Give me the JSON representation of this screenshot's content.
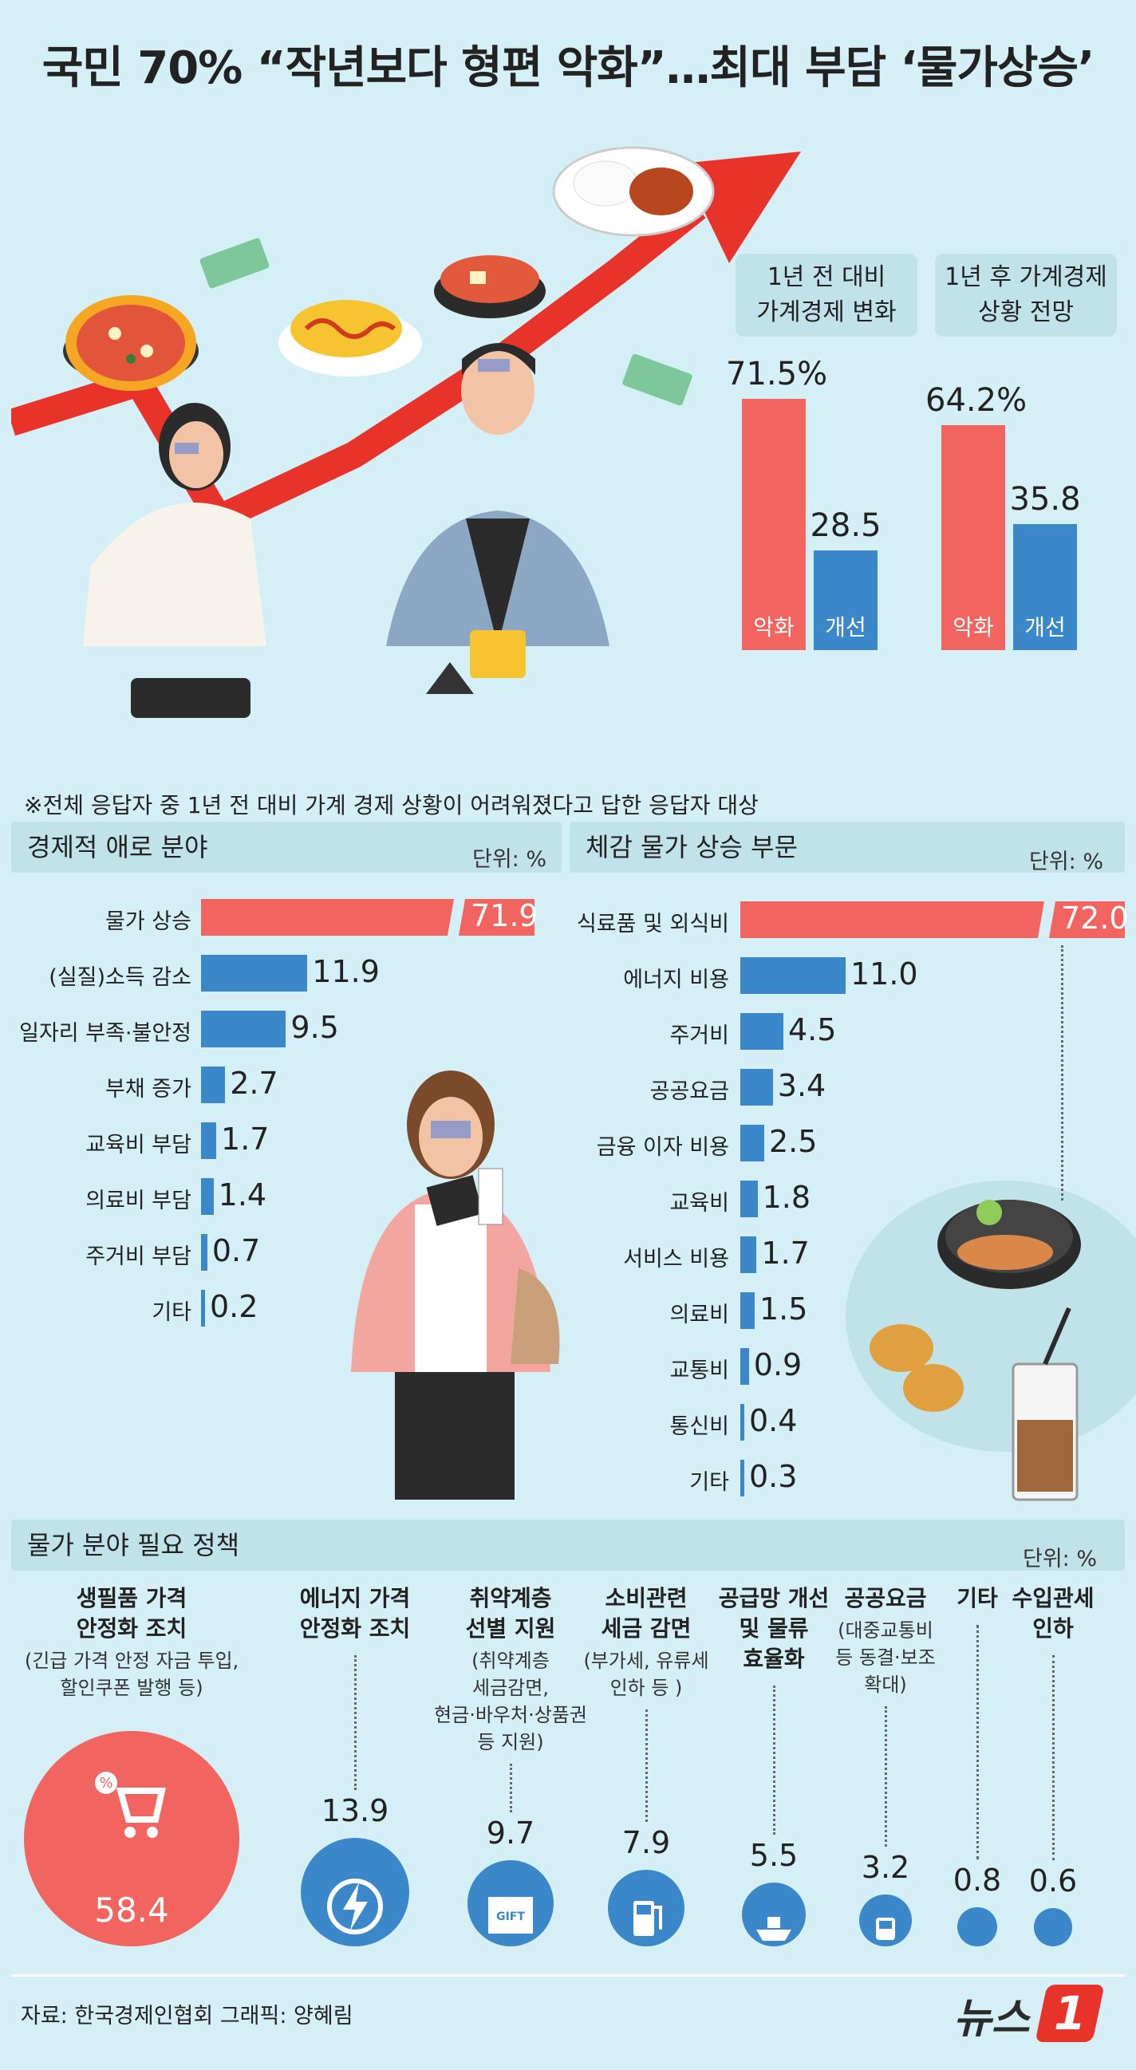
{
  "title": "국민 70% “작년보다 형편 악화”…최대 부담 ‘물가상승’",
  "colors": {
    "red": "#f2645f",
    "blue": "#3a87c9",
    "panel": "#bfe3e8",
    "bg": "#d4f0f6"
  },
  "top_charts": [
    {
      "heading": "1년 전 대비\n가계경제 변화",
      "bars": [
        {
          "label": "악화",
          "value": 71.5,
          "display": "71.5%"
        },
        {
          "label": "개선",
          "value": 28.5,
          "display": "28.5"
        }
      ]
    },
    {
      "heading": "1년 후 가계경제\n상황 전망",
      "bars": [
        {
          "label": "악화",
          "value": 64.2,
          "display": "64.2%"
        },
        {
          "label": "개선",
          "value": 35.8,
          "display": "35.8"
        }
      ]
    }
  ],
  "note": "※전체 응답자 중 1년 전 대비 가계 경제 상황이 어려워졌다고 답한 응답자 대상",
  "chart_data": [
    {
      "type": "bar",
      "title": "경제적 애로 분야",
      "unit": "단위: %",
      "categories": [
        "물가 상승",
        "(실질)소득 감소",
        "일자리 부족·불안정",
        "부채 증가",
        "교육비 부담",
        "의료비 부담",
        "주거비 부담",
        "기타"
      ],
      "values": [
        71.9,
        11.9,
        9.5,
        2.7,
        1.7,
        1.4,
        0.7,
        0.2
      ],
      "labels": [
        "71.9",
        "11.9",
        "9.5",
        "2.7",
        "1.7",
        "1.4",
        "0.7",
        "0.2"
      ]
    },
    {
      "type": "bar",
      "title": "체감 물가 상승 부문",
      "unit": "단위: %",
      "categories": [
        "식료품 및 외식비",
        "에너지 비용",
        "주거비",
        "공공요금",
        "금융 이자 비용",
        "교육비",
        "서비스 비용",
        "의료비",
        "교통비",
        "통신비",
        "기타"
      ],
      "values": [
        72.0,
        11.0,
        4.5,
        3.4,
        2.5,
        1.8,
        1.7,
        1.5,
        0.9,
        0.4,
        0.3
      ],
      "labels": [
        "72.0",
        "11.0",
        "4.5",
        "3.4",
        "2.5",
        "1.8",
        "1.7",
        "1.5",
        "0.9",
        "0.4",
        "0.3"
      ]
    },
    {
      "type": "bar",
      "title": "물가 분야 필요 정책",
      "unit": "단위: %",
      "categories": [
        {
          "head": "생필품 가격\n안정화 조치",
          "sub": "(긴급 가격 안정 자금 투입,\n할인쿠폰 발행 등)"
        },
        {
          "head": "에너지 가격\n안정화 조치",
          "sub": ""
        },
        {
          "head": "취약계층\n선별 지원",
          "sub": "(취약계층\n세금감면,\n현금·바우처·상품권\n등 지원)"
        },
        {
          "head": "소비관련\n세금 감면",
          "sub": "(부가세, 유류세\n인하 등 )"
        },
        {
          "head": "공급망 개선\n및 물류\n효율화",
          "sub": ""
        },
        {
          "head": "공공요금",
          "sub": "(대중교통비\n등 동결·보조\n확대)"
        },
        {
          "head": "기타",
          "sub": ""
        },
        {
          "head": "수입관세\n인하",
          "sub": ""
        }
      ],
      "values": [
        58.4,
        13.9,
        9.7,
        7.9,
        5.5,
        3.2,
        0.8,
        0.6
      ],
      "labels": [
        "58.4",
        "13.9",
        "9.7",
        "7.9",
        "5.5",
        "3.2",
        "0.8",
        "0.6"
      ]
    }
  ],
  "icons": [
    "arrow-up-icon",
    "cart-percent-icon",
    "lightning-icon",
    "gift-icon",
    "fuel-pump-icon",
    "ship-icon",
    "train-icon"
  ],
  "gift_text": "GIFT",
  "footer": "자료: 한국경제인협회   그래픽: 양혜림",
  "logo": {
    "text": "뉴스",
    "badge": "1"
  }
}
